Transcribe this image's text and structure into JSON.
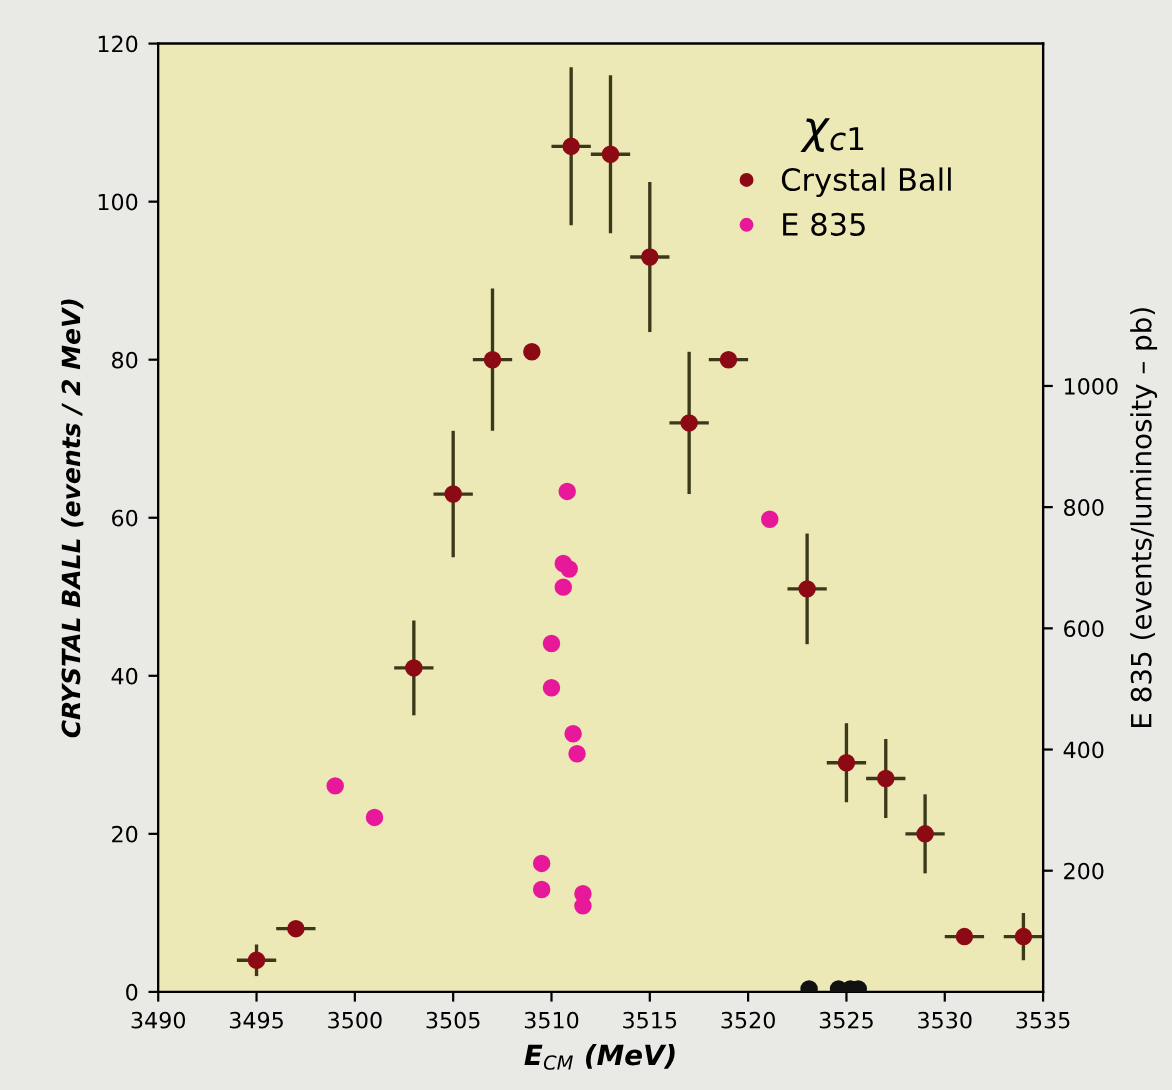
{
  "chart_data": {
    "type": "scatter",
    "xlabel": "E$_{CM}$ (MeV)",
    "ylabel": "CRYSTAL BALL (events / 2 MeV)",
    "y2label": "E 835 (events/luminosity – pb)",
    "legend_title": "χ$_{c1}$",
    "legend": "top right",
    "marker": "circle",
    "grid": false,
    "xlim": [
      3490,
      3535
    ],
    "xticks": [
      3490,
      3495,
      3500,
      3505,
      3510,
      3515,
      3520,
      3525,
      3530,
      3535
    ],
    "ylim": [
      0,
      120
    ],
    "yticks": [
      0,
      20,
      40,
      60,
      80,
      100,
      120
    ],
    "y2lim": [
      0,
      1565
    ],
    "y2ticks": [
      200,
      400,
      600,
      800,
      1000
    ],
    "series": [
      {
        "name": "Crystal Ball",
        "color": "#8b0a14",
        "x": [
          3495,
          3497,
          3503,
          3505,
          3507,
          3509,
          3511,
          3513,
          3515,
          3517,
          3519,
          3523,
          3525,
          3527,
          3529,
          3531,
          3534
        ],
        "values": [
          4,
          8,
          41,
          63,
          80,
          81,
          107,
          106,
          93,
          72,
          80,
          51,
          29,
          27,
          20,
          7,
          7
        ],
        "errors": [
          2,
          null,
          6,
          8,
          9,
          null,
          10,
          10,
          9.5,
          9,
          null,
          7,
          5,
          5,
          5,
          null,
          3
        ],
        "xerrors": [
          1,
          1,
          1,
          1,
          1,
          null,
          1,
          1,
          1,
          1,
          1,
          1,
          1,
          1,
          1,
          1,
          1
        ]
      },
      {
        "name": "E 835",
        "color": "#e8189a",
        "axis": "y2",
        "x": [
          3499,
          3501,
          3509.5,
          3509.5,
          3510.0,
          3510.0,
          3510.6,
          3510.6,
          3510.8,
          3510.9,
          3511.1,
          3511.3,
          3511.6,
          3511.6,
          3521.1
        ],
        "values": [
          340,
          288,
          212,
          169,
          575,
          502,
          668,
          707,
          826,
          698,
          426,
          393,
          162,
          142,
          780
        ]
      },
      {
        "color": "#111111",
        "axis": "y2",
        "x": [
          3523.1,
          3524.6,
          3525.2,
          3525.6
        ],
        "values": [
          5,
          5,
          5,
          5
        ]
      }
    ]
  }
}
